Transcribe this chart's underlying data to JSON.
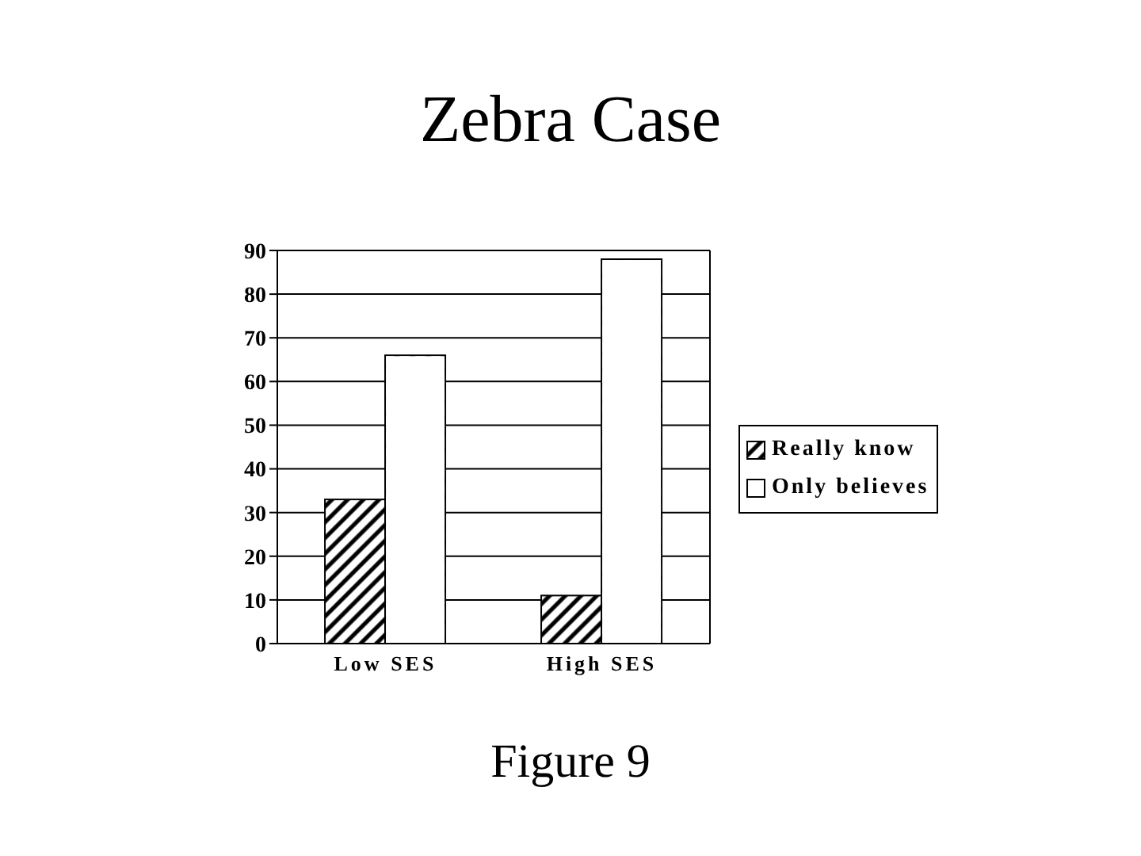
{
  "chart_data": {
    "type": "bar",
    "title": "Zebra Case",
    "categories": [
      "Low SES",
      "High SES"
    ],
    "series": [
      {
        "name": "Really know",
        "color": "#000000",
        "values": [
          33,
          11
        ]
      },
      {
        "name": "Only believes",
        "color": "#ffffff",
        "values": [
          66,
          88
        ]
      }
    ],
    "ylim": [
      0,
      90
    ],
    "yticks": [
      0,
      10,
      20,
      30,
      40,
      50,
      60,
      70,
      80,
      90
    ],
    "grid": "y",
    "legend": "right",
    "annotations": [
      "Figure 9"
    ]
  }
}
